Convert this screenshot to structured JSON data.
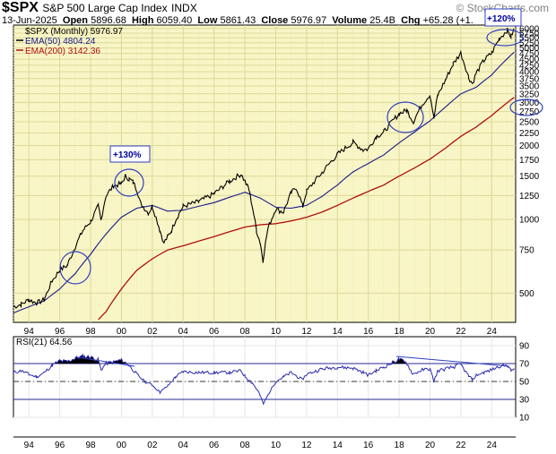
{
  "header": {
    "symbol": "$SPX",
    "name": "S&P 500 Large Cap Index",
    "exchange": "INDX",
    "date": "13-Jun-2025",
    "open_label": "Open",
    "open": "5896.68",
    "high_label": "High",
    "high": "6059.40",
    "low_label": "Low",
    "low": "5861.43",
    "close_label": "Close",
    "close": "5976.97",
    "volume_label": "Volume",
    "volume": "25.4B",
    "chg_label": "Chg",
    "chg": "+65.28 (+1.",
    "watermark": "© StockCharts.com"
  },
  "legend": {
    "price": "$SPX (Monthly) 5976.97",
    "ema50": "EMA(50) 4804.24",
    "ema200": "EMA(200) 3142.36",
    "rsi": "RSI(21) 64.56"
  },
  "colors": {
    "panel_bg": "#f8f5c6",
    "grid": "#dcd99a",
    "price": "#000000",
    "ema50": "#1a1a8c",
    "ema200": "#b01010",
    "rsi": "#2a2ab0",
    "annotation": "#3040c0"
  },
  "annotations": {
    "a1": "+130%",
    "a2": "+120%"
  },
  "chart_data": [
    {
      "type": "line",
      "title": "$SPX S&P 500 Large Cap Index",
      "scale": "log",
      "ylim": [
        380,
        6200
      ],
      "y_ticks": [
        "6000",
        "5750",
        "5500",
        "5250",
        "5000",
        "4750",
        "4500",
        "4250",
        "4000",
        "3750",
        "3500",
        "3250",
        "3000",
        "2750",
        "2500",
        "2250",
        "2000",
        "1750",
        "1500",
        "1250",
        "1000",
        "750",
        "500"
      ],
      "x_ticks": [
        "94",
        "96",
        "98",
        "00",
        "02",
        "04",
        "06",
        "08",
        "10",
        "12",
        "14",
        "16",
        "18",
        "20",
        "22",
        "24"
      ],
      "series": [
        {
          "name": "$SPX (Monthly)",
          "x": [
            1993.0,
            1993.5,
            1994.0,
            1994.5,
            1995.0,
            1995.5,
            1996.0,
            1996.5,
            1997.0,
            1997.5,
            1998.0,
            1998.5,
            1998.67,
            1999.0,
            1999.5,
            2000.0,
            2000.25,
            2000.5,
            2000.75,
            2001.0,
            2001.25,
            2001.75,
            2002.0,
            2002.5,
            2002.75,
            2003.0,
            2003.25,
            2003.5,
            2004.0,
            2005.0,
            2006.0,
            2007.0,
            2007.75,
            2008.25,
            2008.75,
            2009.0,
            2009.17,
            2009.5,
            2010.0,
            2010.5,
            2011.0,
            2011.33,
            2011.75,
            2012.0,
            2013.0,
            2014.0,
            2015.0,
            2015.67,
            2016.0,
            2016.5,
            2017.0,
            2018.0,
            2018.5,
            2018.92,
            2019.5,
            2020.0,
            2020.25,
            2020.5,
            2021.0,
            2021.5,
            2021.99,
            2022.5,
            2022.75,
            2023.0,
            2023.5,
            2024.0,
            2024.5,
            2025.0,
            2025.25,
            2025.45
          ],
          "values": [
            440,
            450,
            470,
            455,
            470,
            560,
            620,
            650,
            770,
            900,
            980,
            1130,
            990,
            1250,
            1370,
            1400,
            1500,
            1460,
            1420,
            1320,
            1160,
            1060,
            1130,
            900,
            800,
            850,
            900,
            990,
            1130,
            1180,
            1270,
            1430,
            1530,
            1330,
            900,
            800,
            680,
            920,
            1100,
            1070,
            1280,
            1350,
            1130,
            1300,
            1550,
            1840,
            2060,
            1920,
            1940,
            2170,
            2270,
            2700,
            2780,
            2500,
            2950,
            3230,
            2580,
            3200,
            3700,
            4300,
            4770,
            3800,
            3580,
            3950,
            4450,
            4770,
            5470,
            5900,
            5570,
            5977
          ]
        },
        {
          "name": "EMA(50)",
          "x": [
            1993.0,
            1994.0,
            1995.0,
            1996.0,
            1997.0,
            1998.0,
            1999.0,
            2000.0,
            2001.0,
            2002.0,
            2003.0,
            2004.0,
            2005.0,
            2006.0,
            2007.0,
            2008.0,
            2009.0,
            2010.0,
            2011.0,
            2012.0,
            2013.0,
            2014.0,
            2015.0,
            2016.0,
            2017.0,
            2018.0,
            2019.0,
            2020.0,
            2021.0,
            2022.0,
            2023.0,
            2024.0,
            2025.45
          ],
          "values": [
            415,
            440,
            465,
            520,
            600,
            720,
            870,
            1020,
            1110,
            1140,
            1080,
            1090,
            1130,
            1170,
            1230,
            1290,
            1220,
            1120,
            1110,
            1140,
            1240,
            1380,
            1560,
            1690,
            1830,
            2050,
            2270,
            2520,
            2870,
            3250,
            3460,
            3880,
            4804
          ]
        },
        {
          "name": "EMA(200)",
          "x": [
            1998.5,
            1999.0,
            2000.0,
            2001.0,
            2002.0,
            2003.0,
            2004.0,
            2005.0,
            2006.0,
            2007.0,
            2008.0,
            2009.0,
            2010.0,
            2011.0,
            2012.0,
            2013.0,
            2014.0,
            2015.0,
            2016.0,
            2017.0,
            2018.0,
            2019.0,
            2020.0,
            2021.0,
            2022.0,
            2023.0,
            2024.0,
            2025.45
          ],
          "values": [
            390,
            420,
            520,
            620,
            690,
            750,
            780,
            815,
            850,
            890,
            930,
            950,
            960,
            985,
            1020,
            1070,
            1140,
            1220,
            1300,
            1380,
            1500,
            1620,
            1760,
            1950,
            2180,
            2380,
            2650,
            3142
          ]
        }
      ]
    },
    {
      "type": "line",
      "title": "RSI(21)",
      "ylim": [
        10,
        100
      ],
      "y_ticks": [
        "90",
        "70",
        "50",
        "30",
        "10"
      ],
      "x_ticks": [
        "94",
        "96",
        "98",
        "00",
        "02",
        "04",
        "06",
        "08",
        "10",
        "12",
        "14",
        "16",
        "18",
        "20",
        "22",
        "24"
      ],
      "series": [
        {
          "name": "RSI(21)",
          "x": [
            1993.0,
            1993.5,
            1994.0,
            1994.5,
            1995.0,
            1995.5,
            1996.0,
            1996.5,
            1997.0,
            1997.5,
            1998.0,
            1998.5,
            1998.67,
            1999.0,
            1999.5,
            2000.0,
            2000.5,
            2001.0,
            2001.5,
            2002.0,
            2002.5,
            2003.0,
            2003.5,
            2004.0,
            2005.0,
            2006.0,
            2007.0,
            2007.75,
            2008.0,
            2008.5,
            2008.9,
            2009.2,
            2009.5,
            2010.0,
            2010.5,
            2011.0,
            2011.7,
            2012.0,
            2013.0,
            2014.0,
            2015.0,
            2015.7,
            2016.0,
            2016.5,
            2017.0,
            2017.8,
            2018.0,
            2018.5,
            2018.9,
            2019.5,
            2020.0,
            2020.25,
            2020.5,
            2021.0,
            2021.5,
            2021.99,
            2022.5,
            2022.75,
            2023.0,
            2023.5,
            2024.0,
            2024.5,
            2025.0,
            2025.25,
            2025.45
          ],
          "values": [
            60,
            62,
            58,
            55,
            60,
            68,
            73,
            72,
            76,
            78,
            77,
            74,
            63,
            70,
            72,
            74,
            68,
            58,
            50,
            46,
            38,
            45,
            55,
            61,
            60,
            60,
            60,
            62,
            56,
            48,
            38,
            25,
            35,
            50,
            55,
            60,
            52,
            58,
            64,
            66,
            65,
            60,
            57,
            62,
            66,
            73,
            75,
            70,
            58,
            63,
            64,
            50,
            62,
            64,
            66,
            69,
            56,
            52,
            57,
            60,
            63,
            67,
            68,
            62,
            64.56
          ]
        }
      ]
    }
  ]
}
